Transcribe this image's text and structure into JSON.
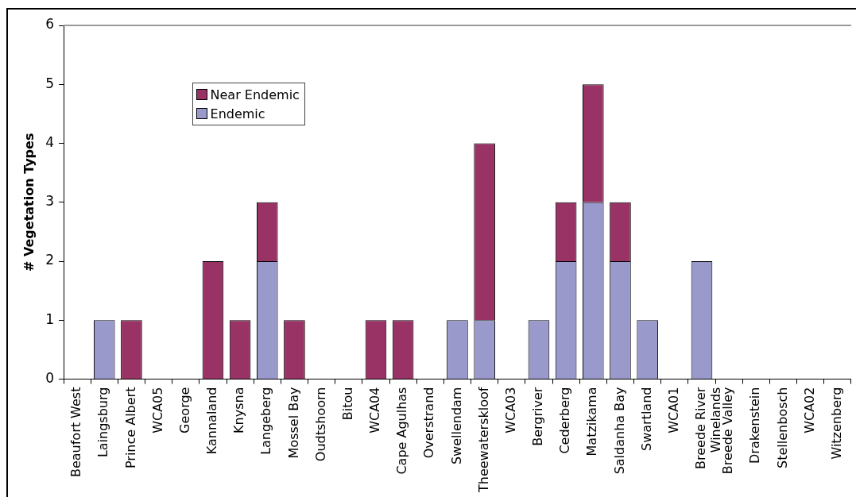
{
  "chart_data": {
    "type": "bar",
    "stacked": true,
    "ylabel": "# Vegetation Types",
    "categories": [
      "Beaufort West",
      "Laingsburg",
      "Prince Albert",
      "WCA05",
      "George",
      "Kannaland",
      "Knysna",
      "Langeberg",
      "Mossel Bay",
      "Oudtshoorn",
      "Bitou",
      "WCA04",
      "Cape Agulhas",
      "Overstrand",
      "Swellendam",
      "Theewaterskloof",
      "WCA03",
      "Bergriver",
      "Cederberg",
      "Matzikama",
      "Saldanha Bay",
      "Swartland",
      "WCA01",
      "Breede River Winelands",
      "Breede Valley",
      "Drakenstein",
      "Stellenbosch",
      "WCA02",
      "Witzenberg"
    ],
    "series": [
      {
        "name": "Endemic",
        "color": "#9999cc",
        "values": [
          0,
          1,
          0,
          0,
          0,
          0,
          0,
          2,
          0,
          0,
          0,
          0,
          0,
          0,
          1,
          1,
          0,
          1,
          2,
          3,
          2,
          1,
          0,
          2,
          0,
          0,
          0,
          0,
          0
        ]
      },
      {
        "name": "Near Endemic",
        "color": "#993366",
        "values": [
          0,
          0,
          1,
          0,
          0,
          2,
          1,
          1,
          1,
          0,
          0,
          1,
          1,
          0,
          0,
          3,
          0,
          0,
          1,
          2,
          1,
          0,
          0,
          0,
          0,
          0,
          0,
          0,
          0
        ]
      }
    ],
    "ylim": [
      0,
      6
    ],
    "yticks": [
      0,
      1,
      2,
      3,
      4,
      5,
      6
    ],
    "legend": "top left"
  }
}
